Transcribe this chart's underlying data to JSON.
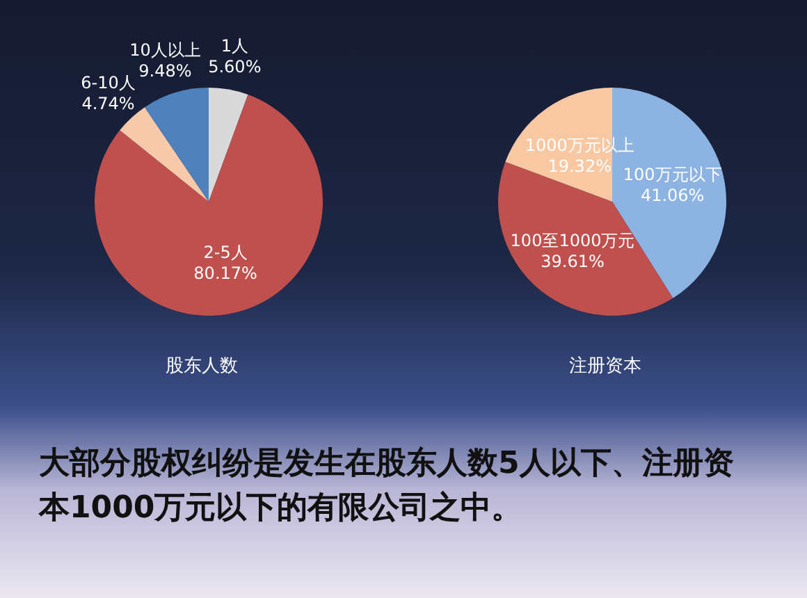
{
  "chart_data": [
    {
      "type": "pie",
      "title": "股东人数",
      "categories": [
        "1人",
        "2-5人",
        "6-10人",
        "10人以上"
      ],
      "values": [
        5.6,
        80.17,
        4.74,
        9.48
      ],
      "colors": [
        "#d9d9d9",
        "#c0504d",
        "#f5c9a9",
        "#4f81bd"
      ],
      "value_labels": [
        "5.60%",
        "80.17%",
        "4.74%",
        "9.48%"
      ]
    },
    {
      "type": "pie",
      "title": "注册资本",
      "categories": [
        "100万元以下",
        "100至1000万元",
        "1000万元以上"
      ],
      "values": [
        41.06,
        39.61,
        19.32
      ],
      "colors": [
        "#8db3e2",
        "#c0504d",
        "#f7c8a2"
      ],
      "value_labels": [
        "41.06%",
        "39.61%",
        "19.32%"
      ]
    },
    {
      "type": "other",
      "annotations": [
        "大部分股权纠纷是发生在股东人数5人以下、注册资本1000万元以下的有限公司之中。"
      ]
    }
  ]
}
